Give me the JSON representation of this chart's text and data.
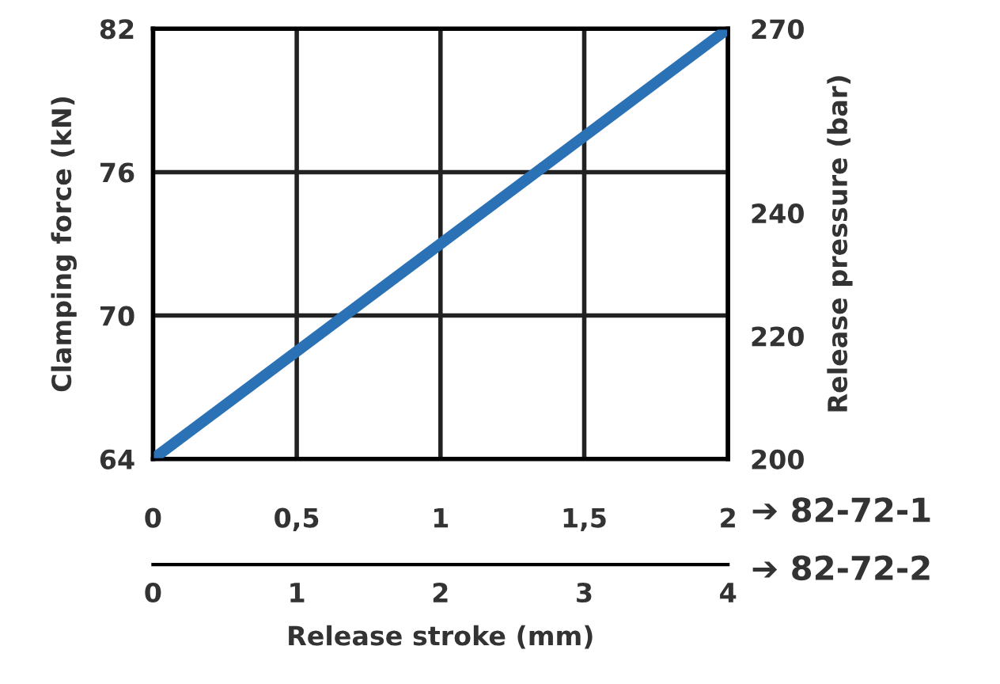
{
  "chart_data": {
    "type": "line",
    "xlabel": "Release stroke (mm)",
    "ylabel": "Clamping force (kN)",
    "y2label": "Release pressure (bar)",
    "x": [
      0,
      2
    ],
    "series": [
      {
        "color": "#2a72b5",
        "values": [
          64,
          82
        ]
      }
    ],
    "xlim": [
      0,
      2
    ],
    "xticks": [
      0,
      {
        "value": 0.5,
        "label": "0,5"
      },
      1,
      {
        "value": 1.5,
        "label": "1,5"
      },
      2
    ],
    "x2lim": [
      0,
      4
    ],
    "x2ticks": [
      0,
      1,
      2,
      3,
      4
    ],
    "ylim": [
      64,
      82
    ],
    "yticks": [
      64,
      70,
      76,
      82
    ],
    "y2lim": [
      200,
      270
    ],
    "y2ticks": [
      200,
      220,
      240,
      270
    ],
    "grid": true,
    "marker": "none",
    "line_style": "solid",
    "annotations": [
      "➔ 82-72-1",
      "➔ 82-72-2"
    ]
  }
}
